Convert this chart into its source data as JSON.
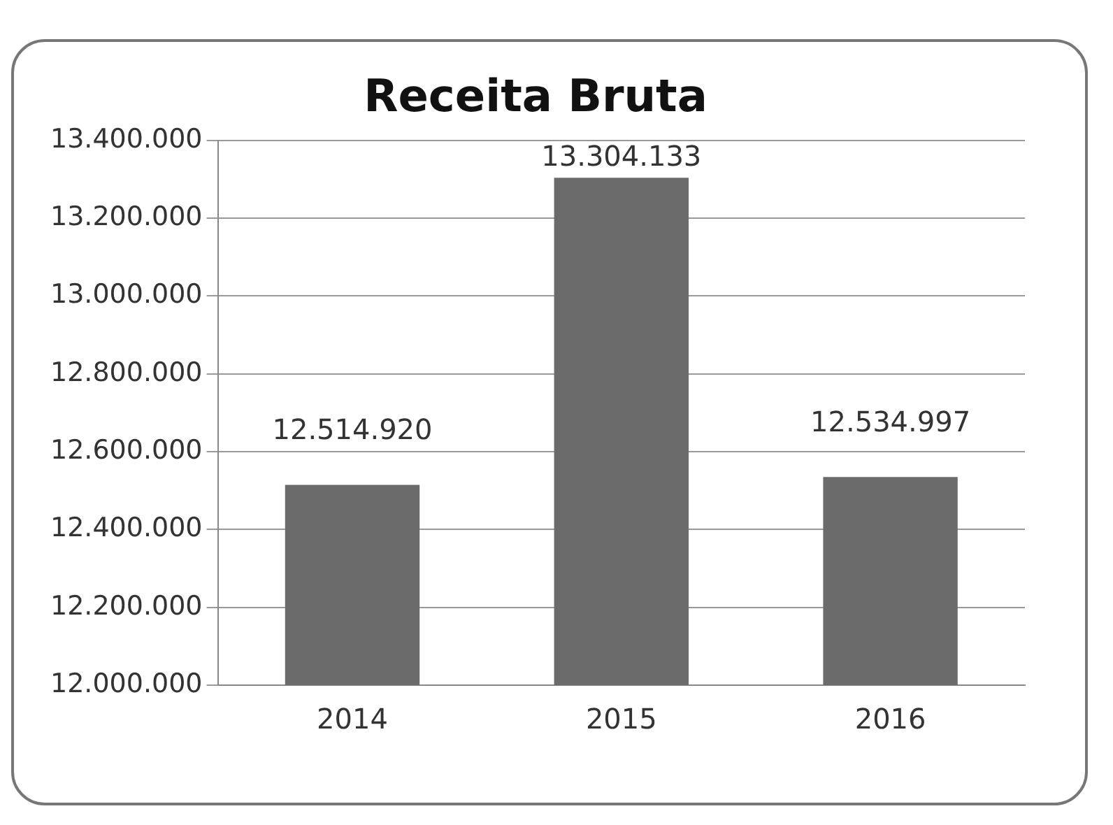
{
  "chart_data": {
    "type": "bar",
    "title": "Receita Bruta",
    "categories": [
      "2014",
      "2015",
      "2016"
    ],
    "values": [
      12514920,
      13304133,
      12534997
    ],
    "value_labels": [
      "12.514.920",
      "13.304.133",
      "12.534.997"
    ],
    "color": "#6b6b6b",
    "ylim": [
      12000000,
      13400000
    ],
    "yticks": [
      {
        "value": 12000000,
        "label": "12.000.000"
      },
      {
        "value": 12200000,
        "label": "12.200.000"
      },
      {
        "value": 12400000,
        "label": "12.400.000"
      },
      {
        "value": 12600000,
        "label": "12.600.000"
      },
      {
        "value": 12800000,
        "label": "12.800.000"
      },
      {
        "value": 13000000,
        "label": "13.000.000"
      },
      {
        "value": 13200000,
        "label": "13.200.000"
      },
      {
        "value": 13400000,
        "label": "13.400.000"
      }
    ],
    "grid": "y"
  }
}
